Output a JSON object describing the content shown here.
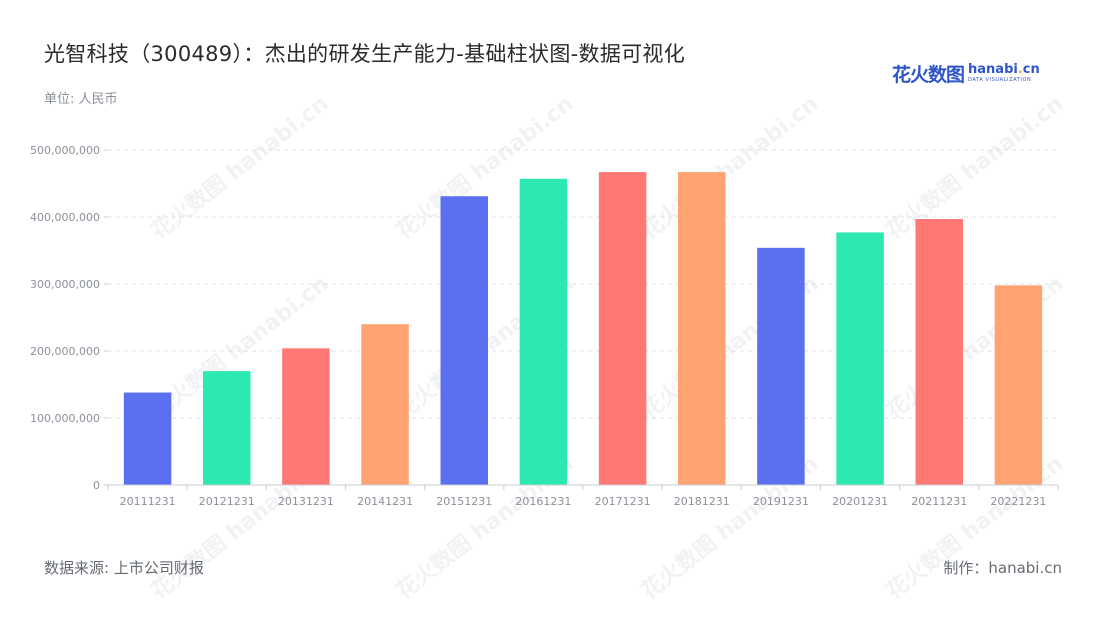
{
  "header": {
    "title": "光智科技（300489）：杰出的研发生产能力-基础柱状图-数据可视化",
    "unit": "单位: 人民币"
  },
  "logo": {
    "cn": "花火数图",
    "en_main": "hanabi",
    "en_dot": ".",
    "en_tail": "cn",
    "tagline": "DATA VISUALIZATION"
  },
  "footer": {
    "source": "数据来源: 上市公司财报",
    "credit": "制作：hanabi.cn"
  },
  "watermark_text": "花火数图 hanabi.cn",
  "chart_data": {
    "type": "bar",
    "categories": [
      "20111231",
      "20121231",
      "20131231",
      "20141231",
      "20151231",
      "20161231",
      "20171231",
      "20181231",
      "20191231",
      "20201231",
      "20211231",
      "20221231"
    ],
    "values": [
      138000000,
      170000000,
      204000000,
      240000000,
      431000000,
      457000000,
      467000000,
      467000000,
      354000000,
      377000000,
      397000000,
      298000000
    ],
    "ylim": [
      0,
      500000000
    ],
    "yticks": [
      0,
      100000000,
      200000000,
      300000000,
      400000000,
      500000000
    ],
    "ytick_labels": [
      "0",
      "100,000,000",
      "200,000,000",
      "300,000,000",
      "400,000,000",
      "500,000,000"
    ],
    "colors": [
      "#5b70ee",
      "#2de8b0",
      "#ff7873",
      "#ffa372"
    ],
    "grid": true,
    "legend": "none"
  }
}
